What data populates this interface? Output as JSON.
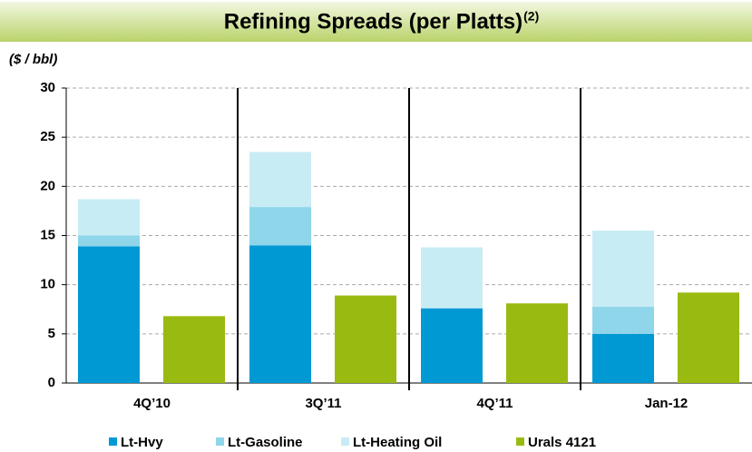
{
  "chart_data": {
    "type": "bar",
    "stacked": true,
    "title": "Refining Spreads (per Platts)",
    "title_superscript": "(2)",
    "ylabel": "($ / bbl)",
    "categories": [
      "4Q’10",
      "3Q’11",
      "4Q’11",
      "Jan-12"
    ],
    "series": [
      {
        "name": "Lt-Hvy",
        "color": "#0099d4",
        "values": [
          13.9,
          14.0,
          7.6,
          5.0
        ]
      },
      {
        "name": "Lt-Gasoline",
        "color": "#8fd6ea",
        "values": [
          1.1,
          3.9,
          0,
          2.75
        ]
      },
      {
        "name": "Lt-Heating Oil",
        "color": "#c8ecf4",
        "values": [
          3.7,
          5.6,
          6.2,
          7.75
        ]
      },
      {
        "name": "Urals 4121",
        "color": "#99bb11",
        "values": [
          6.8,
          8.9,
          8.1,
          9.2
        ]
      }
    ],
    "ylim": [
      0,
      30
    ],
    "yticks": [
      0,
      5,
      10,
      15,
      20,
      25,
      30
    ],
    "grid": true
  }
}
